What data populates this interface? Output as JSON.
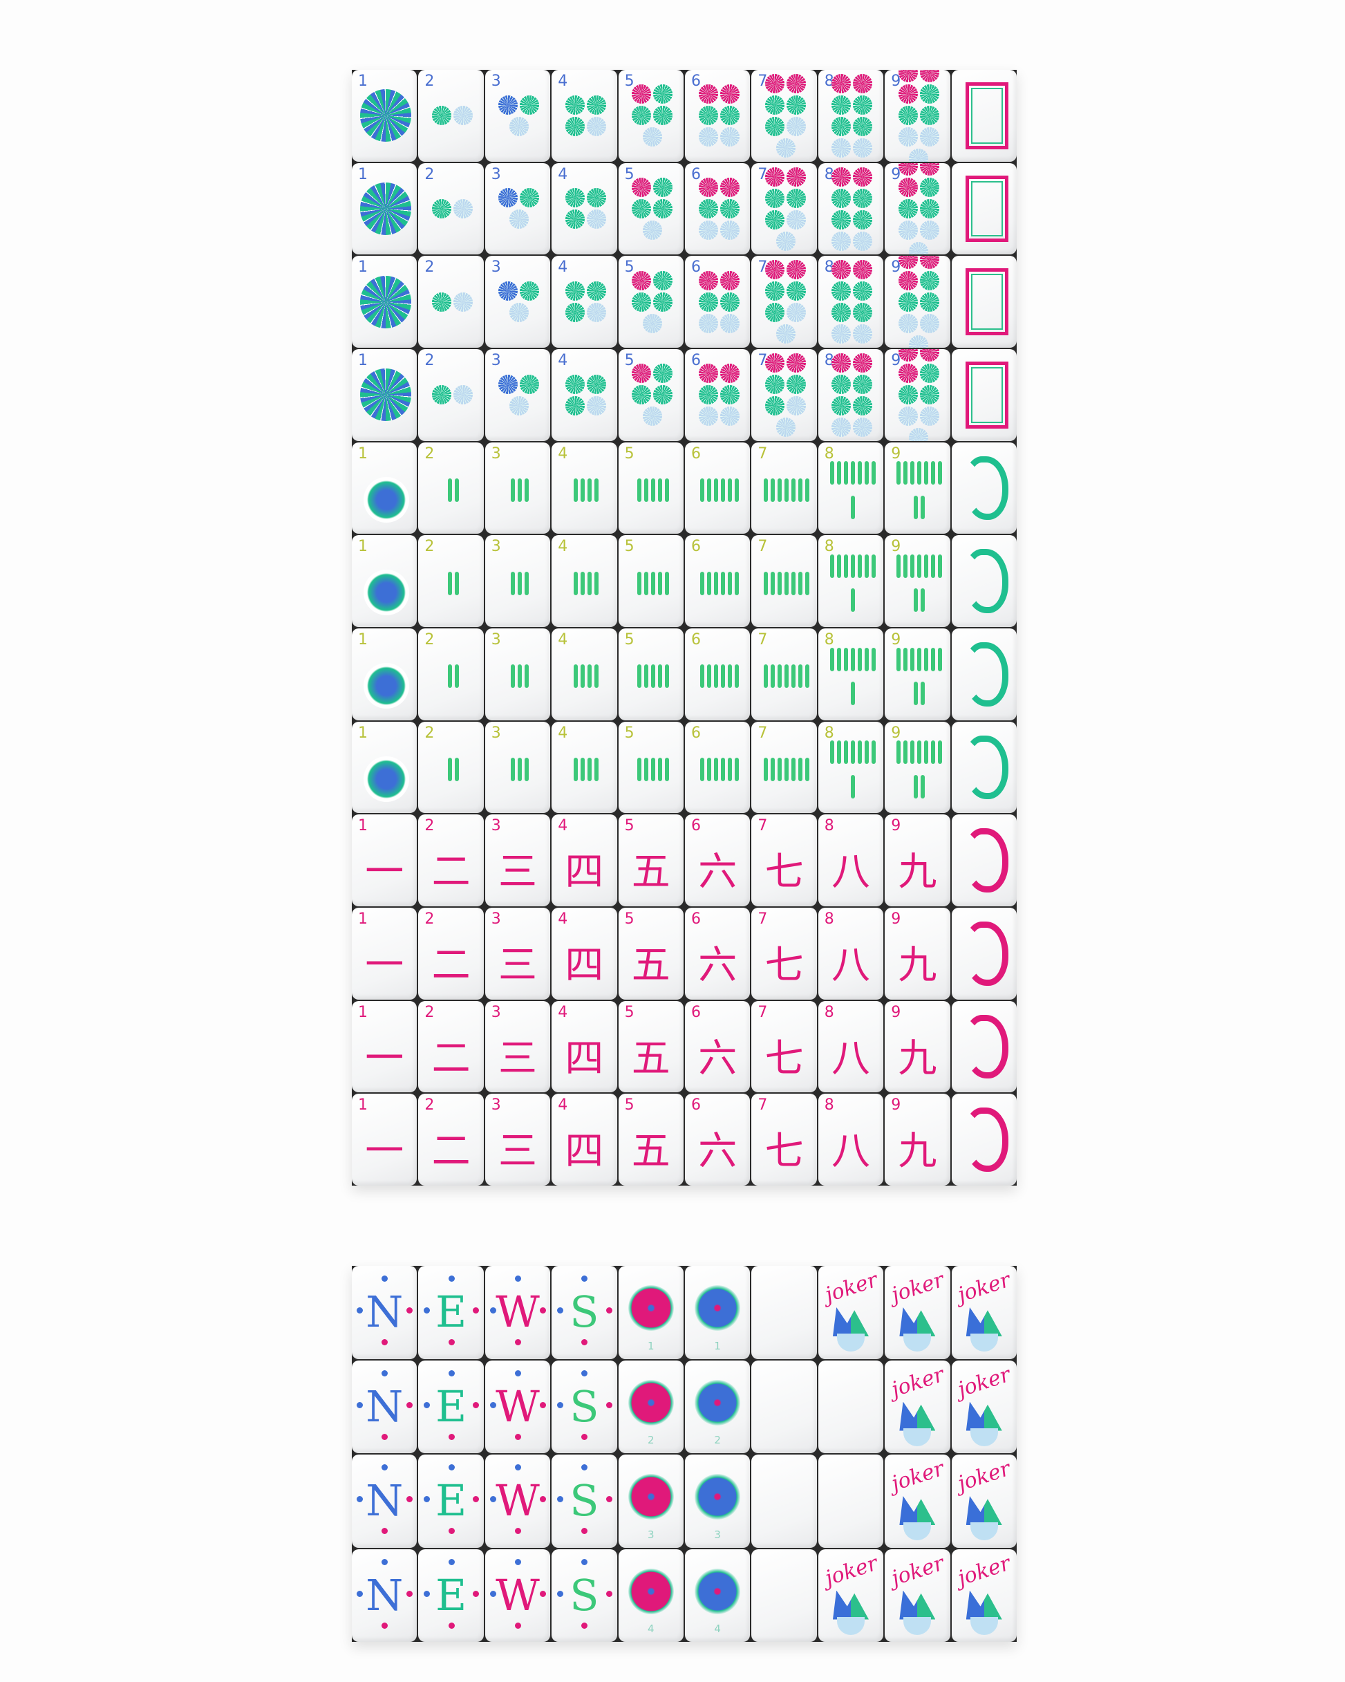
{
  "top_sections": [
    {
      "suit": "dots",
      "copies": 4,
      "tiles": [
        {
          "label": "1",
          "count": 1
        },
        {
          "label": "2",
          "count": 2
        },
        {
          "label": "3",
          "count": 3
        },
        {
          "label": "4",
          "count": 4
        },
        {
          "label": "5",
          "count": 5
        },
        {
          "label": "6",
          "count": 6
        },
        {
          "label": "7",
          "count": 7
        },
        {
          "label": "8",
          "count": 8
        },
        {
          "label": "9",
          "count": 9
        }
      ],
      "end_tile": "white-dragon-frame"
    },
    {
      "suit": "bamboo",
      "copies": 4,
      "tiles": [
        {
          "label": "1",
          "count": 1,
          "icon": "peacock-icon"
        },
        {
          "label": "2",
          "count": 2
        },
        {
          "label": "3",
          "count": 3
        },
        {
          "label": "4",
          "count": 4
        },
        {
          "label": "5",
          "count": 5
        },
        {
          "label": "6",
          "count": 6
        },
        {
          "label": "7",
          "count": 7
        },
        {
          "label": "8",
          "count": 8
        },
        {
          "label": "9",
          "count": 9
        }
      ],
      "end_tile": "green-dragon"
    },
    {
      "suit": "characters",
      "copies": 4,
      "tiles": [
        {
          "label": "1",
          "glyph": "一"
        },
        {
          "label": "2",
          "glyph": "二"
        },
        {
          "label": "3",
          "glyph": "三"
        },
        {
          "label": "4",
          "glyph": "四"
        },
        {
          "label": "5",
          "glyph": "五"
        },
        {
          "label": "6",
          "glyph": "六"
        },
        {
          "label": "7",
          "glyph": "七"
        },
        {
          "label": "8",
          "glyph": "八"
        },
        {
          "label": "9",
          "glyph": "九"
        }
      ],
      "end_tile": "red-dragon"
    }
  ],
  "bottom_rows": [
    {
      "winds": [
        "N",
        "E",
        "W",
        "S"
      ],
      "flowers": [
        "1",
        "1"
      ],
      "col7": "blank",
      "col8": "joker"
    },
    {
      "winds": [
        "N",
        "E",
        "W",
        "S"
      ],
      "flowers": [
        "2",
        "2"
      ],
      "col7": "blank",
      "col8": "blank"
    },
    {
      "winds": [
        "N",
        "E",
        "W",
        "S"
      ],
      "flowers": [
        "3",
        "3"
      ],
      "col7": "blank",
      "col8": "blank"
    },
    {
      "winds": [
        "N",
        "E",
        "W",
        "S"
      ],
      "flowers": [
        "4",
        "4"
      ],
      "col7": "blank",
      "col8": "joker"
    }
  ],
  "joker_label": "joker",
  "colors": {
    "teal": "#1fbf8f",
    "blue": "#3d6fd6",
    "light_blue": "#bcd8ef",
    "pink": "#e0197a",
    "green": "#3cc879",
    "lime": "#b8c23a"
  },
  "wind_colors": {
    "N": "#3d6fd6",
    "E": "#1fbf8f",
    "W": "#e0197a",
    "S": "#3cc879"
  }
}
